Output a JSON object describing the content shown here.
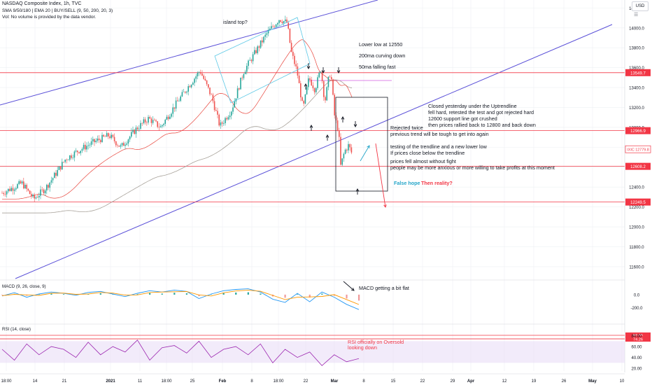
{
  "header": {
    "title": "NASDAQ Composite Index, 1h, TVC",
    "line2": "SMA 9/50/180 | EMA 20 | BUY/SELL (9, 50, 200, 20, 3)",
    "line3": "Vol: No volume is provided by the data vendor.",
    "currency": "USD",
    "menu_icon": "sliders-icon"
  },
  "annotations": {
    "island": "island top?",
    "lower_low": [
      "Lower low at 12550",
      "200ma curving down",
      "50ma falling fast"
    ],
    "closed": [
      "Closed yesterday under the Uptrendline",
      "fell hard, retested the test and got rejected hard",
      "12600 support line got crushed",
      "then prices rallied back to 12800 and back down"
    ],
    "rejected": [
      "Rejected twice",
      "previous trend will be tough to get into again"
    ],
    "testing": [
      "testing of the trendline and a new lower low",
      "If prices close below the trendline"
    ],
    "fell": [
      "prices fell almost without fight",
      "people may be more anxious or more willing to take profits at this moment"
    ],
    "false_hope": "False hope",
    "then_reality": "Then reality?",
    "macd_note": "MACD getting a bit flat",
    "rsi_note": [
      "RSI officially on Oversold",
      "looking down"
    ]
  },
  "chart_data": [
    {
      "type": "line",
      "title": "NASDAQ Composite Index, 1h, TVC",
      "y_ticks": [
        11600,
        11800,
        12000,
        12200,
        12400,
        12600,
        12800,
        13000,
        13200,
        13400,
        13600,
        13800,
        14000,
        14200
      ],
      "ylim": [
        11480,
        14280
      ],
      "x_ticks": [
        "18:00",
        "14",
        "21",
        "2021",
        "11",
        "18:00",
        "25",
        "Feb",
        "8",
        "18:00",
        "22",
        "Mar",
        "8",
        "15",
        "22",
        "29",
        "Apr",
        "12",
        "19",
        "26",
        "May",
        "10"
      ],
      "series": [
        {
          "name": "",
          "x": [
            0,
            10,
            16,
            22,
            28,
            32,
            38,
            46,
            54,
            60,
            68,
            74,
            80,
            88,
            94,
            100,
            106,
            110,
            116,
            122,
            128,
            134,
            140,
            144,
            146,
            149,
            152,
            155,
            158,
            161,
            163,
            165,
            166,
            168,
            170,
            171,
            173,
            175,
            177
          ],
          "values": [
            12340,
            12440,
            12280,
            12390,
            12560,
            12680,
            12760,
            12850,
            12920,
            12800,
            12990,
            13090,
            13000,
            13240,
            13410,
            13570,
            13300,
            13010,
            13180,
            13560,
            13760,
            13950,
            14090,
            14050,
            13760,
            13560,
            13180,
            13500,
            13380,
            13590,
            13250,
            13500,
            13560,
            13100,
            12960,
            12610,
            12760,
            12820,
            12720
          ]
        }
      ],
      "price_lines": [
        {
          "label": "13549.7",
          "value": 13549.7,
          "color": "#f23645"
        },
        {
          "label": "12966.9",
          "value": 12966.9,
          "color": "#f23645"
        },
        {
          "label": "12608.2",
          "value": 12608.2,
          "color": "#f23645"
        },
        {
          "label": "12249.5",
          "value": 12249.5,
          "color": "#f23645"
        }
      ],
      "last_price": {
        "label": "12779.8",
        "prefix": "IXIC",
        "value": 12779.8,
        "color": "#f23645"
      },
      "candle_colors": {
        "up": "#26a69a",
        "down": "#ef5350"
      }
    },
    {
      "type": "line",
      "title": "MACD (9, 26, close, 9)",
      "y_ticks": [
        "0.0",
        "-200.0"
      ],
      "ylim": [
        -260,
        150
      ],
      "series": [
        {
          "name": "",
          "values": [
            -20,
            30,
            -40,
            10,
            40,
            20,
            -10,
            35,
            50,
            10,
            -30,
            20,
            60,
            40,
            70,
            50,
            -60,
            10,
            60,
            80,
            90,
            40,
            -70,
            -120,
            20,
            -110,
            40,
            -40,
            -150,
            -230
          ]
        }
      ]
    },
    {
      "type": "line",
      "title": "RSI (14, close)",
      "y_ticks": [
        "80.00",
        "60.00",
        "40.00",
        "20.00"
      ],
      "ylim": [
        15,
        95
      ],
      "bands": [
        {
          "label": "80.85",
          "value": 80.85
        },
        {
          "label": "74.26",
          "value": 74.26
        }
      ],
      "oversold": 30,
      "overbought": 70,
      "series": [
        {
          "name": "",
          "values": [
            55,
            35,
            65,
            45,
            60,
            55,
            40,
            68,
            45,
            60,
            50,
            72,
            35,
            58,
            62,
            48,
            70,
            40,
            55,
            60,
            45,
            65,
            30,
            55,
            40,
            50,
            25,
            45,
            32,
            38
          ]
        }
      ]
    }
  ]
}
